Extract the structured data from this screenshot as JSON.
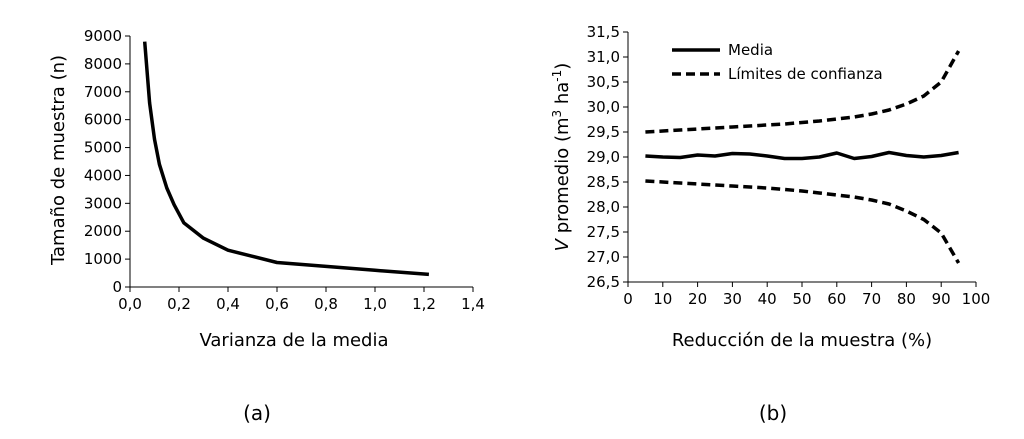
{
  "chart_data": [
    {
      "panel_label": "(a)",
      "type": "line",
      "xlabel": "Varianza de la media",
      "ylabel": "Tamaño de muestra (n)",
      "xlim": [
        0,
        1.4
      ],
      "ylim": [
        0,
        9000
      ],
      "x_ticks": [
        0,
        0.2,
        0.4,
        0.6,
        0.8,
        1.0,
        1.2,
        1.4
      ],
      "x_tick_labels": [
        "0,0",
        "0,2",
        "0,4",
        "0,6",
        "0,8",
        "1,0",
        "1,2",
        "1,4"
      ],
      "y_ticks": [
        0,
        1000,
        2000,
        3000,
        4000,
        5000,
        6000,
        7000,
        8000,
        9000
      ],
      "y_tick_labels": [
        "0",
        "1000",
        "2000",
        "3000",
        "4000",
        "5000",
        "6000",
        "7000",
        "8000",
        "9000"
      ],
      "grid": false,
      "series": [
        {
          "style": "solid",
          "color": "#000000",
          "x": [
            0.06,
            0.08,
            0.1,
            0.12,
            0.15,
            0.18,
            0.22,
            0.3,
            0.4,
            0.6,
            0.8,
            1.0,
            1.22
          ],
          "y": [
            8800,
            6600,
            5300,
            4400,
            3550,
            2950,
            2300,
            1750,
            1320,
            880,
            740,
            600,
            450
          ]
        }
      ]
    },
    {
      "panel_label": "(b)",
      "type": "line",
      "xlabel": "Reducción de la muestra (%)",
      "ylabel_italic": "V",
      "ylabel_main": " promedio (m",
      "ylabel_sup1": "3",
      "ylabel_mid": " ha",
      "ylabel_sup2": "-1",
      "ylabel_end": ")",
      "xlim": [
        0,
        100
      ],
      "ylim": [
        26.5,
        31.5
      ],
      "x_ticks": [
        0,
        10,
        20,
        30,
        40,
        50,
        60,
        70,
        80,
        90,
        100
      ],
      "x_tick_labels": [
        "0",
        "10",
        "20",
        "30",
        "40",
        "50",
        "60",
        "70",
        "80",
        "90",
        "100"
      ],
      "y_ticks": [
        26.5,
        27.0,
        27.5,
        28.0,
        28.5,
        29.0,
        29.5,
        30.0,
        30.5,
        31.0,
        31.5
      ],
      "y_tick_labels": [
        "26,5",
        "27,0",
        "27,5",
        "28,0",
        "28,5",
        "29,0",
        "29,5",
        "30,0",
        "30,5",
        "31,0",
        "31,5"
      ],
      "grid": false,
      "legend_position": "top-left",
      "x": [
        5,
        10,
        15,
        20,
        25,
        30,
        35,
        40,
        45,
        50,
        55,
        60,
        65,
        70,
        75,
        80,
        85,
        90,
        95
      ],
      "series": [
        {
          "name": "Media",
          "style": "solid",
          "color": "#000000",
          "values": [
            29.02,
            29.0,
            28.99,
            29.04,
            29.02,
            29.07,
            29.06,
            29.02,
            28.97,
            28.97,
            29.0,
            29.08,
            28.97,
            29.01,
            29.09,
            29.03,
            29.0,
            29.03,
            29.09
          ]
        },
        {
          "name": "Límites de confianza",
          "style": "dashed",
          "color": "#000000",
          "values": [
            29.5,
            29.52,
            29.54,
            29.56,
            29.58,
            29.6,
            29.62,
            29.64,
            29.66,
            29.69,
            29.72,
            29.76,
            29.8,
            29.86,
            29.94,
            30.06,
            30.22,
            30.5,
            31.12
          ]
        },
        {
          "style": "dashed",
          "color": "#000000",
          "legend": false,
          "values": [
            28.52,
            28.5,
            28.48,
            28.46,
            28.44,
            28.42,
            28.4,
            28.38,
            28.35,
            28.32,
            28.28,
            28.24,
            28.2,
            28.14,
            28.06,
            27.92,
            27.75,
            27.48,
            26.88
          ]
        }
      ]
    }
  ]
}
